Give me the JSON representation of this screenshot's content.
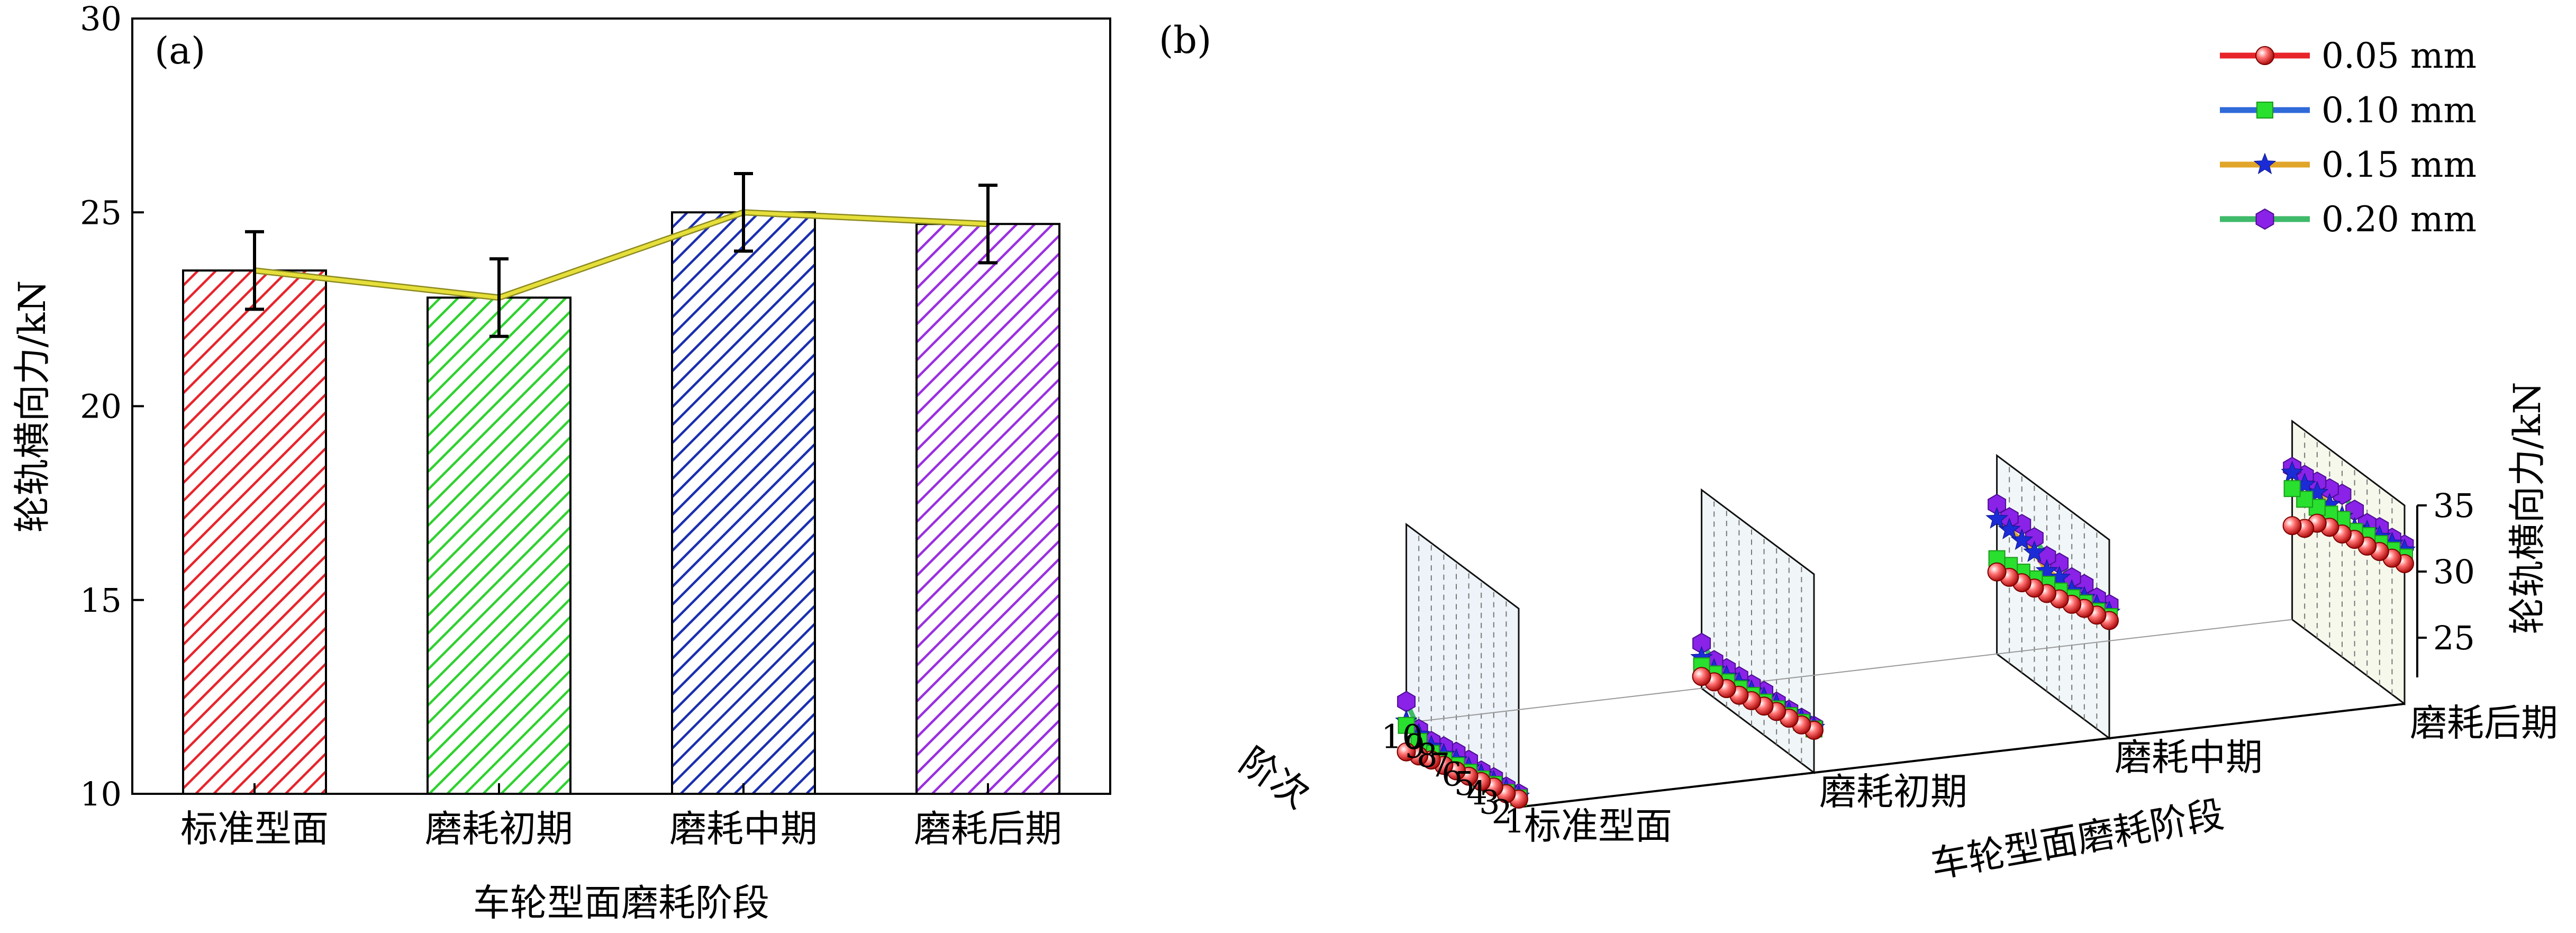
{
  "chart_data": [
    {
      "type": "bar",
      "panel_label": "(a)",
      "categories": [
        "标准型面",
        "磨耗初期",
        "磨耗中期",
        "磨耗后期"
      ],
      "values": [
        23.5,
        22.8,
        25.0,
        24.7
      ],
      "errors": [
        1.0,
        1.0,
        1.0,
        1.0
      ],
      "colors": [
        "#e8242b",
        "#2fd12f",
        "#1a2fb0",
        "#9a2fe0"
      ],
      "trend_line_color": "#e6df3a",
      "xlabel": "车轮型面磨耗阶段",
      "ylabel": "轮轨横向力/kN",
      "ylim": [
        10,
        30
      ],
      "yticks": [
        "10",
        "15",
        "20",
        "25",
        "30"
      ],
      "hatch": "diagonal",
      "grid": false
    },
    {
      "type": "line",
      "projection": "3d",
      "panel_label": "(b)",
      "x_axis_label": "阶次",
      "x_ticks": [
        "1",
        "2",
        "3",
        "4",
        "5",
        "6",
        "7",
        "8",
        "9",
        "10"
      ],
      "stage_axis_label": "车轮型面磨耗阶段",
      "stages": [
        "标准型面",
        "磨耗初期",
        "磨耗中期",
        "磨耗后期"
      ],
      "zlabel": "轮轨横向力/kN",
      "z_ticks": [
        "25",
        "30",
        "35"
      ],
      "zlim": [
        20,
        35
      ],
      "legend_position": "top-right",
      "series": [
        {
          "name": "0.05 mm",
          "marker": "sphere",
          "color": "#e8242b",
          "values": [
            [
              20.6,
              20.3,
              20.1,
              19.8,
              19.5,
              19.2,
              18.9,
              18.6,
              18.2,
              17.8
            ],
            [
              23.2,
              22.9,
              22.7,
              22.5,
              22.2,
              21.9,
              21.6,
              21.4,
              21.2,
              20.9
            ],
            [
              28.9,
              28.6,
              28.4,
              28.0,
              27.7,
              27.4,
              27.1,
              26.8,
              26.5,
              26.2
            ],
            [
              30.6,
              30.3,
              30.1,
              29.8,
              29.6,
              29.3,
              29.1,
              28.7,
              27.6,
              27.1
            ]
          ]
        },
        {
          "name": "0.10 mm",
          "marker": "square",
          "color": "#2f6ad8",
          "values": [
            [
              20.7,
              20.4,
              20.3,
              20.0,
              19.8,
              19.6,
              19.3,
              19.1,
              19.3,
              19.8
            ],
            [
              23.3,
              23.1,
              22.9,
              22.7,
              22.5,
              22.3,
              22.1,
              21.9,
              21.8,
              21.7
            ],
            [
              29.2,
              28.9,
              28.8,
              28.5,
              28.3,
              28.1,
              27.8,
              27.6,
              27.4,
              27.2
            ],
            [
              31.1,
              30.9,
              30.7,
              30.6,
              30.2,
              30.4,
              30.1,
              29.9,
              29.8,
              29.9
            ]
          ]
        },
        {
          "name": "0.15 mm",
          "marker": "star",
          "color": "#e0a52a",
          "values": [
            [
              20.8,
              20.6,
              20.5,
              20.3,
              20.1,
              20.0,
              19.7,
              19.6,
              19.8,
              20.1
            ],
            [
              23.4,
              23.3,
              23.1,
              23.0,
              22.8,
              22.6,
              22.5,
              22.3,
              22.1,
              22.3
            ],
            [
              29.5,
              29.3,
              29.2,
              29.0,
              29.3,
              29.1,
              29.8,
              30.0,
              30.1,
              30.2
            ],
            [
              31.6,
              31.4,
              31.2,
              30.9,
              30.4,
              30.6,
              30.8,
              31.0,
              30.9,
              31.1
            ]
          ]
        },
        {
          "name": "0.20 mm",
          "marker": "hexagon",
          "color": "#3fba6a",
          "values": [
            [
              21.0,
              20.8,
              20.8,
              20.6,
              20.7,
              20.6,
              20.3,
              20.0,
              20.2,
              21.6
            ],
            [
              23.5,
              23.4,
              23.3,
              23.2,
              23.3,
              23.1,
              23.0,
              22.9,
              22.8,
              23.4
            ],
            [
              30.1,
              29.9,
              30.2,
              30.0,
              30.4,
              30.2,
              30.9,
              31.2,
              31.0,
              31.3
            ],
            [
              32.0,
              31.8,
              31.9,
              31.5,
              31.8,
              32.3,
              32.0,
              31.8,
              31.6,
              31.5
            ]
          ]
        }
      ]
    }
  ]
}
